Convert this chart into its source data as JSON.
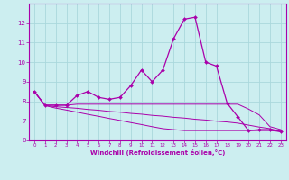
{
  "xlabel": "Windchill (Refroidissement éolien,°C)",
  "x": [
    0,
    1,
    2,
    3,
    4,
    5,
    6,
    7,
    8,
    9,
    10,
    11,
    12,
    13,
    14,
    15,
    16,
    17,
    18,
    19,
    20,
    21,
    22,
    23
  ],
  "line1": [
    8.5,
    7.8,
    7.8,
    7.8,
    8.3,
    8.5,
    8.2,
    8.1,
    8.2,
    8.8,
    9.6,
    9.0,
    9.6,
    11.2,
    12.2,
    12.3,
    10.0,
    9.8,
    7.9,
    7.2,
    6.5,
    6.55,
    6.55,
    6.45
  ],
  "line2": [
    8.5,
    7.8,
    7.8,
    7.8,
    7.85,
    7.85,
    7.85,
    7.85,
    7.85,
    7.85,
    7.85,
    7.85,
    7.85,
    7.85,
    7.85,
    7.85,
    7.85,
    7.85,
    7.85,
    7.85,
    7.6,
    7.3,
    6.7,
    6.55
  ],
  "line3": [
    8.5,
    7.78,
    7.72,
    7.68,
    7.64,
    7.58,
    7.54,
    7.48,
    7.44,
    7.38,
    7.34,
    7.28,
    7.24,
    7.18,
    7.14,
    7.08,
    7.04,
    6.98,
    6.94,
    6.88,
    6.78,
    6.68,
    6.6,
    6.45
  ],
  "line4": [
    8.5,
    7.78,
    7.65,
    7.55,
    7.44,
    7.33,
    7.23,
    7.12,
    7.02,
    6.91,
    6.81,
    6.7,
    6.6,
    6.55,
    6.5,
    6.5,
    6.5,
    6.5,
    6.5,
    6.5,
    6.5,
    6.5,
    6.5,
    6.45
  ],
  "color": "#aa00aa",
  "bg_color": "#cceef0",
  "grid_color": "#aad8dc",
  "ylim": [
    6,
    13
  ],
  "xlim": [
    -0.5,
    23.5
  ],
  "yticks": [
    6,
    7,
    8,
    9,
    10,
    11,
    12
  ],
  "xticks": [
    0,
    1,
    2,
    3,
    4,
    5,
    6,
    7,
    8,
    9,
    10,
    11,
    12,
    13,
    14,
    15,
    16,
    17,
    18,
    19,
    20,
    21,
    22,
    23
  ]
}
